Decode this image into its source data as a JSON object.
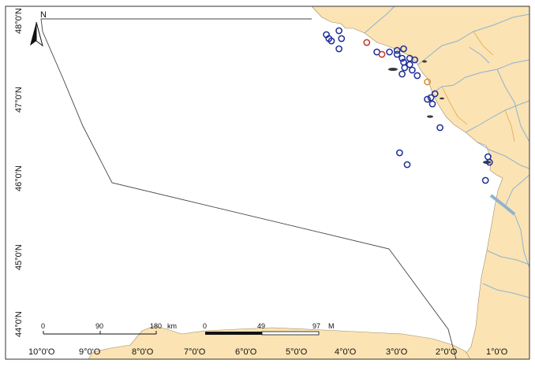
{
  "map": {
    "north_label": "N",
    "lat_labels": [
      "48°0'N",
      "47°0'N",
      "46°0'N",
      "45°0'N",
      "44°0'N"
    ],
    "lon_labels": [
      "10°0'O",
      "9°0'O",
      "8°0'O",
      "7°0'O",
      "6°0'O",
      "5°0'O",
      "4°0'O",
      "3°0'O",
      "2°0'O",
      "1°0'O"
    ],
    "scale_km": {
      "ticks": [
        "0",
        "90",
        "180"
      ],
      "unit": "km"
    },
    "scale_nm": {
      "ticks": [
        "0",
        "49",
        "97"
      ],
      "unit": "M"
    },
    "colors": {
      "land": "#fbe3b3",
      "sea": "#ffffff",
      "rivers": "#8fb3cf",
      "marker_blue": "#1f2e99",
      "marker_red": "#c0392b",
      "marker_orange": "#e08a2c",
      "boundary": "#444444"
    },
    "markers_blue": [
      [
        47.8,
        -4.35
      ],
      [
        47.75,
        -4.3
      ],
      [
        47.72,
        -4.25
      ],
      [
        47.85,
        -4.1
      ],
      [
        47.75,
        -4.05
      ],
      [
        47.62,
        -4.1
      ],
      [
        47.58,
        -3.1
      ],
      [
        47.6,
        -2.95
      ],
      [
        47.62,
        -2.82
      ],
      [
        47.55,
        -2.95
      ],
      [
        47.5,
        -2.85
      ],
      [
        47.45,
        -2.82
      ],
      [
        47.5,
        -2.7
      ],
      [
        47.42,
        -2.7
      ],
      [
        47.38,
        -2.8
      ],
      [
        47.35,
        -2.65
      ],
      [
        47.3,
        -2.85
      ],
      [
        47.48,
        -2.6
      ],
      [
        47.28,
        -2.55
      ],
      [
        47.05,
        -2.2
      ],
      [
        47.0,
        -2.28
      ],
      [
        46.98,
        -2.35
      ],
      [
        46.92,
        -2.25
      ],
      [
        46.62,
        -2.1
      ],
      [
        46.3,
        -2.9
      ],
      [
        46.15,
        -2.75
      ],
      [
        46.25,
        -1.15
      ],
      [
        46.18,
        -1.12
      ],
      [
        45.95,
        -1.2
      ],
      [
        47.58,
        -3.35
      ]
    ],
    "markers_red": [
      [
        47.7,
        -3.55
      ],
      [
        47.55,
        -3.25
      ]
    ],
    "markers_orange": [
      [
        47.2,
        -2.35
      ]
    ]
  }
}
